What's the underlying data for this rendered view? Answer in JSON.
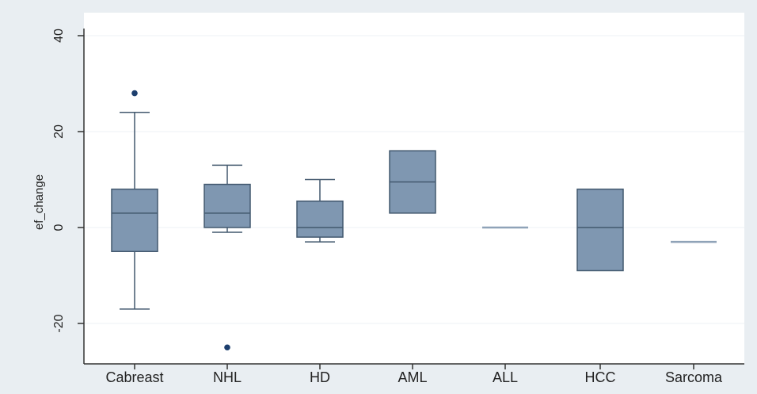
{
  "chart_data": {
    "type": "box",
    "title": "",
    "xlabel": "",
    "ylabel": "ef_change",
    "ylim": [
      -28,
      42
    ],
    "yticks": [
      -20,
      0,
      20,
      40
    ],
    "ytick_labels": [
      "-20",
      "0",
      "20",
      "40"
    ],
    "grid": true,
    "legend": "none",
    "colors": {
      "box_fill": "#7f97b1",
      "box_edge": "#42586e",
      "outlier": "#1d3f6e",
      "plot_bg": "#ffffff",
      "outer_bg": "#e9eef2"
    },
    "categories": [
      "Cabreast",
      "NHL",
      "HD",
      "AML",
      "ALL",
      "HCC",
      "Sarcoma"
    ],
    "boxes": [
      {
        "category": "Cabreast",
        "whisker_low": -17,
        "q1": -5,
        "median": 3,
        "q3": 8,
        "whisker_high": 24,
        "outliers": [
          28
        ]
      },
      {
        "category": "NHL",
        "whisker_low": -1,
        "q1": 0,
        "median": 3,
        "q3": 9,
        "whisker_high": 13,
        "outliers": [
          -25
        ]
      },
      {
        "category": "HD",
        "whisker_low": -3,
        "q1": -2,
        "median": 0,
        "q3": 5.5,
        "whisker_high": 10,
        "outliers": []
      },
      {
        "category": "AML",
        "whisker_low": 3,
        "q1": 3,
        "median": 9.5,
        "q3": 16,
        "whisker_high": 16,
        "outliers": []
      },
      {
        "category": "ALL",
        "whisker_low": 0,
        "q1": 0,
        "median": 0,
        "q3": 0,
        "whisker_high": 0,
        "outliers": []
      },
      {
        "category": "HCC",
        "whisker_low": -9,
        "q1": -9,
        "median": 0,
        "q3": 8,
        "whisker_high": 8,
        "outliers": []
      },
      {
        "category": "Sarcoma",
        "whisker_low": -3,
        "q1": -3,
        "median": -3,
        "q3": -3,
        "whisker_high": -3,
        "outliers": []
      }
    ]
  }
}
